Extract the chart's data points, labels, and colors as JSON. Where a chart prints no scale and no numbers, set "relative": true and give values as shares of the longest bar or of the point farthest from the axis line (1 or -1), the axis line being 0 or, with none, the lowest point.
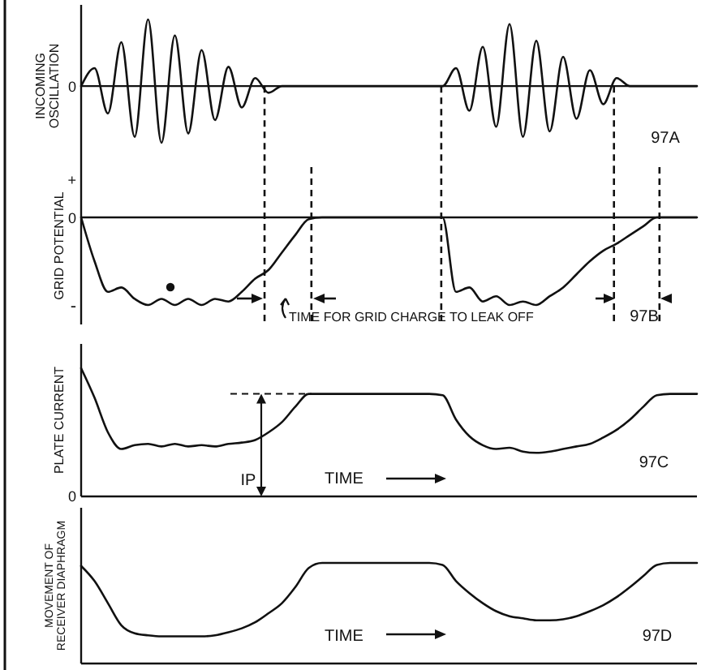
{
  "chart_data": [
    {
      "type": "line",
      "ylabel": "INCOMING OSCILLATION",
      "relative": true,
      "categories": [
        null,
        null,
        null,
        null,
        null,
        null,
        null,
        null,
        null,
        null,
        null,
        null,
        null,
        null,
        null,
        null,
        null,
        null,
        null,
        null,
        null,
        null,
        null,
        null,
        null,
        null,
        null,
        null,
        null,
        null,
        null,
        null,
        null,
        null,
        null,
        null,
        null,
        null,
        null,
        null,
        null,
        null,
        null,
        null,
        null,
        null,
        null
      ],
      "series": [
        {
          "color": "#111111",
          "values": [
            0,
            0.27,
            -0.41,
            0.66,
            -0.76,
            1,
            -0.85,
            0.76,
            -0.71,
            0.54,
            -0.51,
            0.29,
            -0.32,
            0.12,
            -0.1,
            0,
            0,
            0,
            0,
            0,
            0,
            0,
            0,
            0,
            0,
            0,
            0,
            0,
            0.27,
            -0.37,
            0.59,
            -0.61,
            0.93,
            -0.76,
            0.68,
            -0.68,
            0.44,
            -0.49,
            0.24,
            -0.27,
            0.12,
            0,
            0,
            0,
            0,
            0,
            0
          ]
        }
      ],
      "annotations": [
        "0",
        "97A"
      ]
    },
    {
      "type": "line",
      "ylabel": "GRID POTENTIAL",
      "relative": true,
      "categories": [
        null,
        null,
        null,
        null,
        null,
        null,
        null,
        null,
        null,
        null,
        null,
        null,
        null,
        null,
        null,
        null,
        null,
        null,
        null,
        null,
        null,
        null,
        null,
        null,
        null,
        null,
        null,
        null,
        null,
        null,
        null,
        null,
        null,
        null,
        null,
        null,
        null,
        null,
        null,
        null,
        null,
        null,
        null,
        null,
        null,
        null,
        null
      ],
      "series": [
        {
          "color": "#111111",
          "values": [
            0,
            -0.5,
            -0.85,
            -0.8,
            -0.93,
            -1,
            -0.93,
            -1,
            -0.93,
            -1,
            -0.93,
            -0.96,
            -0.85,
            -0.7,
            -0.6,
            -0.4,
            -0.2,
            -0.02,
            0,
            0,
            0,
            0,
            0,
            0,
            0,
            0,
            0,
            0,
            -0.85,
            -0.8,
            -0.96,
            -0.9,
            -1,
            -0.96,
            -1,
            -0.9,
            -0.8,
            -0.65,
            -0.5,
            -0.38,
            -0.3,
            -0.2,
            -0.1,
            0,
            0,
            0,
            0
          ]
        }
      ],
      "annotations": [
        "+",
        "0",
        "-",
        "TIME FOR GRID CHARGE TO LEAK OFF",
        "97B"
      ]
    },
    {
      "type": "line",
      "ylabel": "PLATE CURRENT",
      "relative": true,
      "categories": [
        null,
        null,
        null,
        null,
        null,
        null,
        null,
        null,
        null,
        null,
        null,
        null,
        null,
        null,
        null,
        null,
        null,
        null,
        null,
        null,
        null,
        null,
        null,
        null,
        null,
        null,
        null,
        null,
        null,
        null,
        null,
        null,
        null,
        null,
        null,
        null,
        null,
        null,
        null,
        null,
        null,
        null,
        null,
        null,
        null,
        null,
        null
      ],
      "series": [
        {
          "color": "#111111",
          "values": [
            1,
            0.77,
            0.5,
            0.37,
            0.4,
            0.41,
            0.39,
            0.41,
            0.39,
            0.4,
            0.39,
            0.41,
            0.42,
            0.44,
            0.5,
            0.58,
            0.7,
            0.8,
            0.8,
            0.8,
            0.8,
            0.8,
            0.8,
            0.8,
            0.8,
            0.8,
            0.8,
            0.79,
            0.6,
            0.47,
            0.4,
            0.37,
            0.38,
            0.35,
            0.34,
            0.35,
            0.37,
            0.39,
            0.41,
            0.46,
            0.52,
            0.6,
            0.7,
            0.79,
            0.8,
            0.8,
            0.8
          ]
        }
      ],
      "annotations": [
        "0",
        "IP",
        "TIME",
        "97C"
      ]
    },
    {
      "type": "line",
      "ylabel": "MOVEMENT OF RECEIVER DIAPHRAGM",
      "relative": true,
      "categories": [
        null,
        null,
        null,
        null,
        null,
        null,
        null,
        null,
        null,
        null,
        null,
        null,
        null,
        null,
        null,
        null,
        null,
        null,
        null,
        null,
        null,
        null,
        null,
        null,
        null,
        null,
        null,
        null,
        null,
        null,
        null,
        null,
        null,
        null,
        null,
        null,
        null,
        null,
        null,
        null,
        null,
        null,
        null,
        null,
        null,
        null,
        null
      ],
      "series": [
        {
          "color": "#111111",
          "values": [
            0.97,
            0.82,
            0.6,
            0.38,
            0.3,
            0.28,
            0.27,
            0.27,
            0.27,
            0.27,
            0.28,
            0.31,
            0.35,
            0.41,
            0.5,
            0.6,
            0.76,
            0.95,
            1,
            1,
            1,
            1,
            1,
            1,
            1,
            1,
            1,
            0.98,
            0.82,
            0.7,
            0.6,
            0.52,
            0.47,
            0.45,
            0.43,
            0.43,
            0.44,
            0.47,
            0.52,
            0.58,
            0.66,
            0.76,
            0.87,
            0.98,
            1,
            1,
            1
          ]
        }
      ],
      "annotations": [
        "TIME",
        "97D"
      ]
    }
  ]
}
